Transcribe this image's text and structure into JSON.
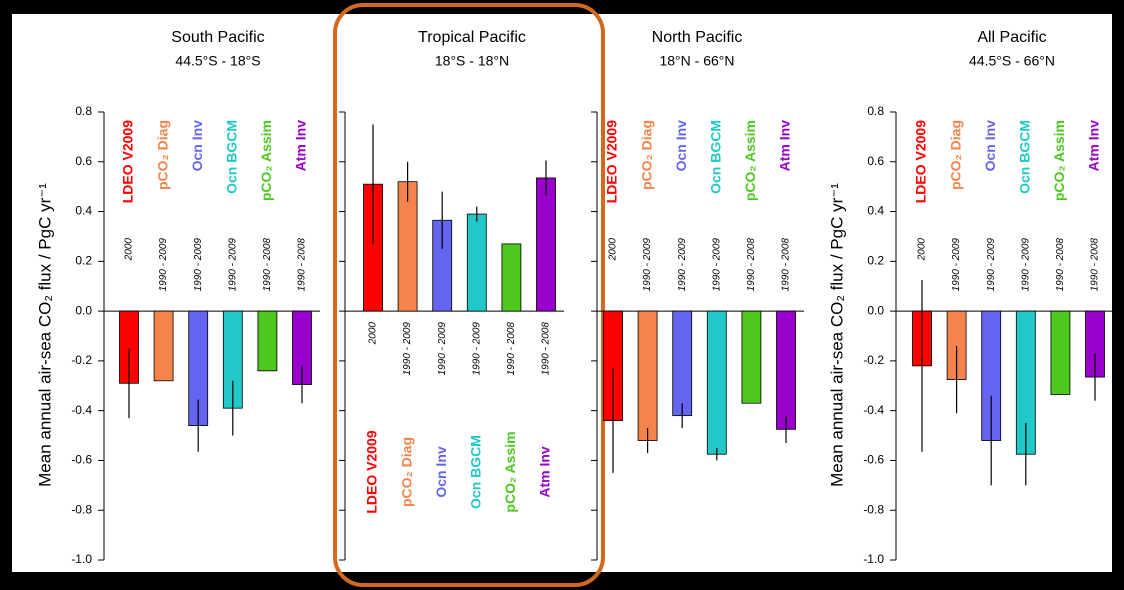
{
  "chart_data": [
    {
      "type": "bar",
      "title": "South Pacific",
      "subtitle": "44.5°S - 18°S",
      "ylabel": "Mean annual air-sea CO₂ flux / PgC yr⁻¹",
      "categories": [
        "LDEO V2009",
        "pCO₂ Diag",
        "Ocn Inv",
        "Ocn BGCM",
        "pCO₂ Assim",
        "Atm Inv"
      ],
      "periods": [
        "2000",
        "1990 - 2009",
        "1990 - 2009",
        "1990 - 2009",
        "1990 - 2008",
        "1990 - 2008"
      ],
      "colors": [
        "#ff0000",
        "#f5844c",
        "#6464f0",
        "#20c8c8",
        "#4cc81e",
        "#9900cc"
      ],
      "values": [
        -0.29,
        -0.28,
        -0.46,
        -0.39,
        -0.24,
        -0.295
      ],
      "errors": [
        0.14,
        null,
        0.105,
        0.11,
        null,
        0.075
      ],
      "ylim": [
        -1,
        0.8
      ],
      "yticks": [
        0.8,
        0.6,
        0.4,
        0.2,
        {
          "value": 0,
          "label": "0.0"
        },
        -0.2,
        -0.4,
        -0.6,
        -0.8,
        {
          "value": -1,
          "label": "-1.0"
        }
      ]
    },
    {
      "type": "bar",
      "title": "Tropical Pacific",
      "subtitle": "18°S - 18°N",
      "categories": [
        "LDEO V2009",
        "pCO₂ Diag",
        "Ocn Inv",
        "Ocn BGCM",
        "pCO₂ Assim",
        "Atm Inv"
      ],
      "periods": [
        "2000",
        "1990 - 2009",
        "1990 - 2009",
        "1990 - 2009",
        "1990 - 2008",
        "1990 - 2008"
      ],
      "colors": [
        "#ff0000",
        "#f5844c",
        "#6464f0",
        "#20c8c8",
        "#4cc81e",
        "#9900cc"
      ],
      "values": [
        0.51,
        0.52,
        0.365,
        0.39,
        0.27,
        0.535
      ],
      "errors": [
        0.24,
        0.08,
        0.115,
        0.03,
        null,
        0.07
      ],
      "ylim": [
        -1,
        0.8
      ],
      "yticks": [
        0.8,
        0.6,
        0.4,
        0.2,
        0,
        -0.2,
        -0.4,
        -0.6,
        -0.8,
        -1
      ],
      "tick_labels": false,
      "highlight": true,
      "highlight_color": "#d2691e"
    },
    {
      "type": "bar",
      "title": "North Pacific",
      "subtitle": "18°N - 66°N",
      "categories": [
        "LDEO V2009",
        "pCO₂ Diag",
        "Ocn Inv",
        "Ocn BGCM",
        "pCO₂ Assim",
        "Atm Inv"
      ],
      "periods": [
        "2000",
        "1990 - 2009",
        "1990 - 2009",
        "1990 - 2009",
        "1990 - 2008",
        "1990 - 2008"
      ],
      "colors": [
        "#ff0000",
        "#f5844c",
        "#6464f0",
        "#20c8c8",
        "#4cc81e",
        "#9900cc"
      ],
      "values": [
        -0.44,
        -0.52,
        -0.42,
        -0.575,
        -0.37,
        -0.475
      ],
      "errors": [
        0.21,
        0.05,
        0.05,
        0.025,
        null,
        0.055
      ],
      "ylim": [
        -1,
        0.8
      ],
      "yticks": [
        0.8,
        0.6,
        0.4,
        0.2,
        0,
        -0.2,
        -0.4,
        -0.6,
        -0.8,
        -1
      ],
      "tick_labels": false
    },
    {
      "type": "bar",
      "title": "All Pacific",
      "subtitle": "44.5°S - 66°N",
      "ylabel": "Mean annual air-sea CO₂ flux / PgC yr⁻¹",
      "categories": [
        "LDEO V2009",
        "pCO₂ Diag",
        "Ocn Inv",
        "Ocn BGCM",
        "pCO₂ Assim",
        "Atm Inv"
      ],
      "periods": [
        "2000",
        "1990 - 2009",
        "1990 - 2009",
        "1990 - 2009",
        "1990 - 2008",
        "1990 - 2008"
      ],
      "colors": [
        "#ff0000",
        "#f5844c",
        "#6464f0",
        "#20c8c8",
        "#4cc81e",
        "#9900cc"
      ],
      "values": [
        -0.22,
        -0.275,
        -0.52,
        -0.575,
        -0.335,
        -0.265
      ],
      "errors": [
        0.345,
        0.135,
        0.18,
        0.125,
        null,
        0.095
      ],
      "ylim": [
        -1,
        0.8
      ],
      "yticks": [
        0.8,
        0.6,
        0.4,
        0.2,
        {
          "value": 0,
          "label": "0.0"
        },
        -0.2,
        -0.4,
        -0.6,
        -0.8,
        {
          "value": -1,
          "label": "-1.0"
        }
      ]
    }
  ]
}
